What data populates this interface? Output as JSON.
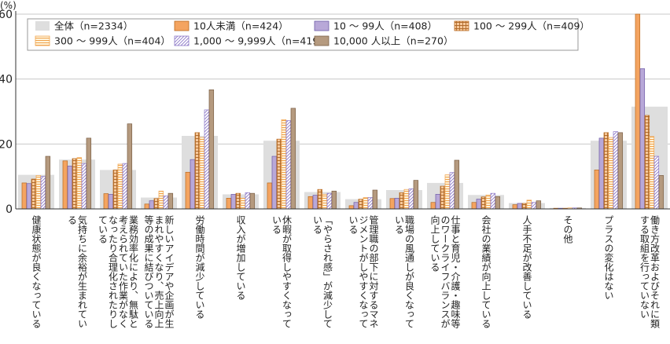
{
  "chart_data": {
    "type": "bar",
    "unit_label": "(%)",
    "ylim": [
      0,
      60
    ],
    "yticks": [
      0,
      20,
      40,
      60
    ],
    "grid": true,
    "legend_position": "top-center",
    "categories": [
      "健康状態が良くなっている",
      "気持ちに余裕が生まれている",
      "業務効率化により、無駄と考えられていた作業がなくなったり合理化されたりしている",
      "新しいアイデアや企画が生まれやすくなり、売上向上等の成果に結びついている",
      "労働時間が減少している",
      "収入が増加している",
      "休暇が取得しやすくなっている",
      "「やらされ感」が減少している",
      "管理職の部下に対するマネジメントがしやすくなっている",
      "職場の風通しが良くなっている",
      "仕事と育児・介護・趣味等のワークライフバランスが向上している",
      "会社の業績が向上している",
      "人手不足が改善している",
      "その他",
      "プラスの変化はない",
      "働き方改革およびそれに類する取組を行っていない"
    ],
    "series": [
      {
        "name": "全体（n=2334）",
        "color": "#dedede",
        "pattern": "background",
        "values": [
          10.5,
          15.2,
          12.0,
          3.5,
          22.5,
          4.5,
          21.0,
          5.2,
          3.0,
          5.8,
          8.0,
          4.3,
          1.8,
          0.3,
          21.0,
          31.5
        ]
      },
      {
        "name": "10人未満（n=424）",
        "color": "#f4a460",
        "pattern": "solid",
        "values": [
          8.0,
          14.8,
          4.7,
          1.5,
          11.3,
          3.3,
          8.0,
          3.8,
          1.0,
          3.2,
          2.0,
          2.0,
          1.3,
          0.2,
          12.0,
          60.0
        ]
      },
      {
        "name": "10 ～ 99人（n=408）",
        "color": "#b8a8d8",
        "pattern": "solid",
        "values": [
          7.8,
          13.2,
          4.5,
          2.5,
          15.2,
          4.5,
          16.2,
          4.2,
          2.0,
          3.3,
          4.5,
          3.0,
          1.7,
          0.2,
          21.8,
          43.2
        ]
      },
      {
        "name": "100 ～ 299人（n=409）",
        "color": "#f6c89a",
        "pattern": "grid",
        "values": [
          9.2,
          15.5,
          12.0,
          3.2,
          23.5,
          4.8,
          21.5,
          6.0,
          3.0,
          5.0,
          7.0,
          3.7,
          1.7,
          0.2,
          23.5,
          28.8
        ]
      },
      {
        "name": "300 ～ 999人（n=404）",
        "color": "#fff6e0",
        "pattern": "hstripe",
        "values": [
          10.3,
          15.8,
          13.8,
          5.5,
          22.0,
          3.3,
          27.5,
          4.5,
          3.5,
          6.0,
          10.5,
          4.3,
          2.7,
          0.3,
          22.0,
          22.3
        ]
      },
      {
        "name": "1,000 ～ 9,999人（n=419）",
        "color": "#e2dcf4",
        "pattern": "diag",
        "values": [
          10.0,
          14.0,
          14.0,
          4.0,
          30.5,
          5.0,
          27.2,
          4.8,
          3.5,
          6.2,
          11.2,
          4.8,
          2.0,
          0.3,
          23.8,
          16.2
        ]
      },
      {
        "name": "10,000 人以上（n=270）",
        "color": "#b59a7f",
        "pattern": "solid",
        "values": [
          16.2,
          21.8,
          26.2,
          4.8,
          36.7,
          4.8,
          31.0,
          5.5,
          5.8,
          8.8,
          15.0,
          3.8,
          2.5,
          0.3,
          23.5,
          10.3
        ]
      }
    ]
  }
}
